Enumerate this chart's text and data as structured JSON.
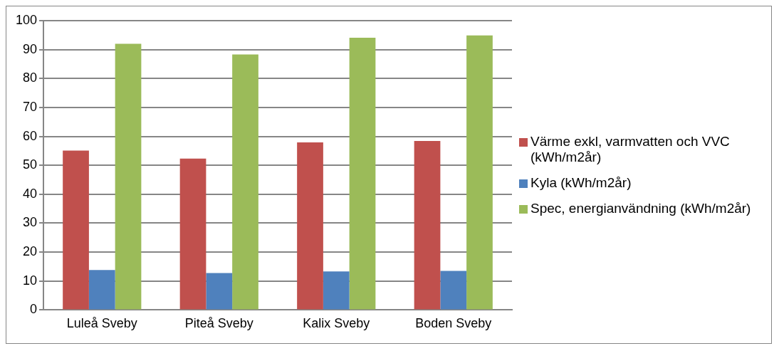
{
  "chart_data": {
    "type": "bar",
    "categories": [
      "Luleå Sveby",
      "Piteå Sveby",
      "Kalix Sveby",
      "Boden Sveby"
    ],
    "series": [
      {
        "name": "Värme exkl, varmvatten och VVC (kWh/m2år)",
        "color": "#c0504d",
        "values": [
          55.1,
          52.3,
          57.9,
          58.4
        ]
      },
      {
        "name": "Kyla (kWh/m2år)",
        "color": "#4f81bd",
        "values": [
          13.8,
          12.8,
          13.3,
          13.5
        ]
      },
      {
        "name": "Spec, energianvändning (kWh/m2år)",
        "color": "#9bbb59",
        "values": [
          92.0,
          88.3,
          94.1,
          94.9
        ]
      }
    ],
    "ylim": [
      0,
      100
    ],
    "yticks": [
      0,
      10,
      20,
      30,
      40,
      50,
      60,
      70,
      80,
      90,
      100
    ],
    "grid": "y",
    "legend": "right"
  }
}
